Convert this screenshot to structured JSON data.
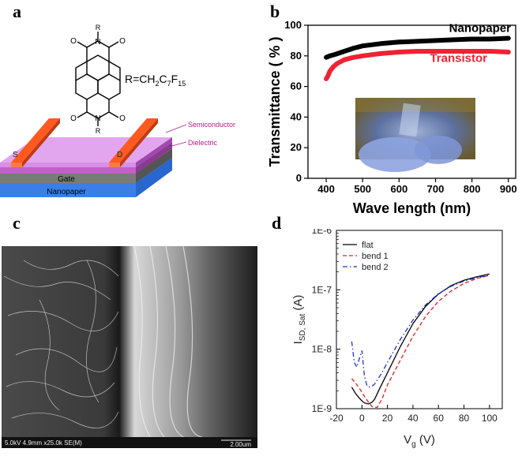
{
  "panels": {
    "a": {
      "letter": "a",
      "molecule": {
        "r_top": "R",
        "r_bottom": "R",
        "atom_n": "N",
        "atom_o": "O",
        "substituent": "R=CH2C7F15",
        "sub_r": "R=CH",
        "sub_2": "2",
        "sub_c": "C",
        "sub_7": "7",
        "sub_f": "F",
        "sub_15": "15"
      },
      "device": {
        "source": "S",
        "drain": "D",
        "gate": "Gate",
        "substrate": "Nanopaper",
        "semiconductor": "Semiconductor",
        "dielectric": "Dielectric"
      },
      "colors": {
        "semiconductor": "#d98ee6",
        "electrode": "#ff5a1f",
        "gate": "#7a7a7a",
        "dielectric": "#c060c8",
        "substrate": "#3a7fe8",
        "label": "#b0208a"
      }
    },
    "b": {
      "letter": "b",
      "photo_inset": "photo-of-transparent-transistor-on-fingertip"
    },
    "c": {
      "letter": "c",
      "sem_caption_left": "5.0kV 4.9mm x25.0k SE(M)",
      "sem_caption_right": "2.00um"
    },
    "d": {
      "letter": "d"
    }
  },
  "chart_data": [
    {
      "id": "b",
      "type": "line",
      "xlabel": "Wave length (nm)",
      "ylabel": "Transmittance ( % )",
      "xlim": [
        350,
        920
      ],
      "ylim": [
        0,
        100
      ],
      "xticks": [
        400,
        500,
        600,
        700,
        800,
        900
      ],
      "yticks": [
        0,
        20,
        40,
        60,
        80,
        100
      ],
      "series": [
        {
          "name": "Nanopaper",
          "color": "#000000",
          "x": [
            400,
            410,
            425,
            450,
            475,
            500,
            550,
            600,
            650,
            700,
            750,
            800,
            850,
            900
          ],
          "y": [
            79,
            80,
            81,
            83,
            85,
            86.5,
            88,
            89,
            89.5,
            90,
            90.5,
            91,
            91,
            91.5
          ]
        },
        {
          "name": "Transistor",
          "color": "#ee2233",
          "x": [
            400,
            405,
            410,
            420,
            430,
            450,
            475,
            500,
            550,
            600,
            650,
            700,
            750,
            800,
            850,
            900
          ],
          "y": [
            65,
            67,
            70,
            73,
            75,
            77.5,
            79,
            80,
            81.5,
            82.5,
            83,
            83,
            83,
            83,
            83,
            82.5
          ]
        }
      ]
    },
    {
      "id": "d",
      "type": "line",
      "xlabel": "Vg (V)",
      "ylabel": "ISD, Sat (A)",
      "xlim": [
        -20,
        110
      ],
      "ylim": [
        1e-09,
        1e-06
      ],
      "log_y": true,
      "xticks": [
        -20,
        0,
        20,
        40,
        60,
        80,
        100
      ],
      "yticks": [
        "1E-9",
        "1E-8",
        "1E-7",
        "1E-6"
      ],
      "legend": "top-left",
      "series": [
        {
          "name": "flat",
          "color": "#000000",
          "style": "solid",
          "x": [
            -8,
            -5,
            -2,
            0,
            2,
            5,
            8,
            10,
            14,
            20,
            30,
            40,
            50,
            60,
            70,
            80,
            90,
            100
          ],
          "y": [
            2.3e-09,
            1.8e-09,
            1.5e-09,
            1.35e-09,
            1.25e-09,
            1.2e-09,
            1.28e-09,
            1.45e-09,
            2.2e-09,
            4e-09,
            1.1e-08,
            2.7e-08,
            5.3e-08,
            8.5e-08,
            1.18e-07,
            1.45e-07,
            1.65e-07,
            1.85e-07
          ]
        },
        {
          "name": "bend 1",
          "color": "#e02020",
          "style": "dashed",
          "x": [
            -8,
            -5,
            -2,
            0,
            2,
            5,
            8,
            12,
            16,
            20,
            30,
            40,
            50,
            60,
            70,
            80,
            90,
            100
          ],
          "y": [
            3.2e-09,
            2.7e-09,
            2.2e-09,
            1.9e-09,
            1.6e-09,
            1.3e-09,
            1.08e-09,
            1.05e-09,
            1.5e-09,
            2.5e-09,
            6.5e-09,
            1.65e-08,
            3.6e-08,
            6.4e-08,
            9.6e-08,
            1.28e-07,
            1.55e-07,
            1.75e-07
          ]
        },
        {
          "name": "bend 2",
          "color": "#2233cc",
          "style": "dashdot",
          "x": [
            -8,
            -6,
            -4,
            -2,
            0,
            2,
            4,
            6,
            8,
            10,
            15,
            20,
            30,
            40,
            50,
            60,
            70,
            80,
            90,
            100
          ],
          "y": [
            1.35e-08,
            6e-09,
            5e-09,
            7e-09,
            9.5e-09,
            3.5e-09,
            2.4e-09,
            2.3e-09,
            2.4e-09,
            2.6e-09,
            3.8e-09,
            6e-09,
            1.45e-08,
            3.1e-08,
            5.6e-08,
            8.6e-08,
            1.15e-07,
            1.4e-07,
            1.6e-07,
            1.75e-07
          ]
        }
      ]
    }
  ]
}
